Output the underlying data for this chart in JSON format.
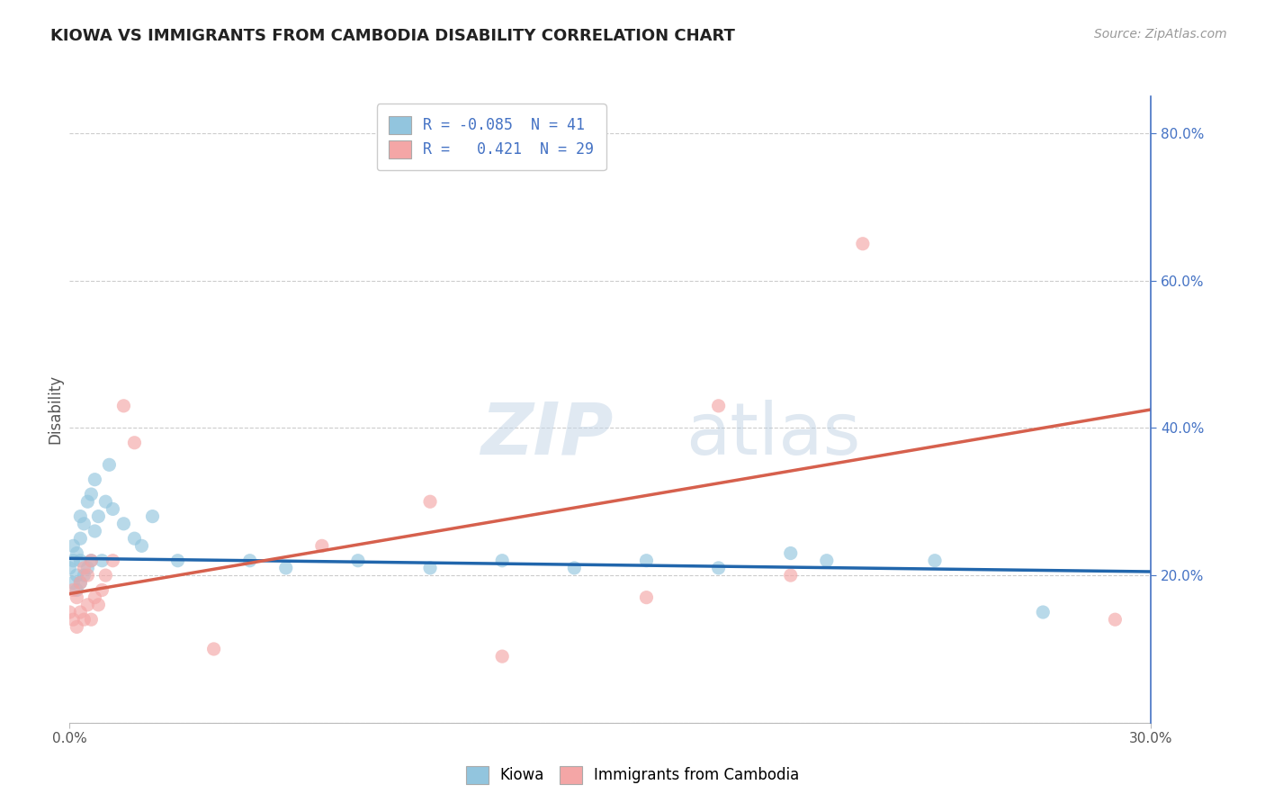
{
  "title": "KIOWA VS IMMIGRANTS FROM CAMBODIA DISABILITY CORRELATION CHART",
  "source": "Source: ZipAtlas.com",
  "ylabel": "Disability",
  "xlim": [
    0.0,
    0.3
  ],
  "ylim": [
    0.0,
    0.85
  ],
  "watermark": "ZIPatlas",
  "kiowa_R": -0.085,
  "kiowa_N": 41,
  "cambodia_R": 0.421,
  "cambodia_N": 29,
  "kiowa_color": "#92c5de",
  "cambodia_color": "#f4a6a6",
  "kiowa_line_color": "#2166ac",
  "cambodia_line_color": "#d6604d",
  "kiowa_x": [
    0.0,
    0.001,
    0.001,
    0.001,
    0.002,
    0.002,
    0.002,
    0.003,
    0.003,
    0.003,
    0.003,
    0.004,
    0.004,
    0.005,
    0.005,
    0.006,
    0.006,
    0.007,
    0.007,
    0.008,
    0.009,
    0.01,
    0.011,
    0.012,
    0.015,
    0.018,
    0.02,
    0.023,
    0.03,
    0.05,
    0.06,
    0.08,
    0.1,
    0.12,
    0.14,
    0.16,
    0.18,
    0.2,
    0.21,
    0.24,
    0.27
  ],
  "kiowa_y": [
    0.21,
    0.19,
    0.22,
    0.24,
    0.18,
    0.2,
    0.23,
    0.19,
    0.22,
    0.25,
    0.28,
    0.2,
    0.27,
    0.21,
    0.3,
    0.22,
    0.31,
    0.26,
    0.33,
    0.28,
    0.22,
    0.3,
    0.35,
    0.29,
    0.27,
    0.25,
    0.24,
    0.28,
    0.22,
    0.22,
    0.21,
    0.22,
    0.21,
    0.22,
    0.21,
    0.22,
    0.21,
    0.23,
    0.22,
    0.22,
    0.15
  ],
  "cambodia_x": [
    0.0,
    0.001,
    0.001,
    0.002,
    0.002,
    0.003,
    0.003,
    0.004,
    0.004,
    0.005,
    0.005,
    0.006,
    0.006,
    0.007,
    0.008,
    0.009,
    0.01,
    0.012,
    0.015,
    0.018,
    0.04,
    0.07,
    0.1,
    0.12,
    0.16,
    0.18,
    0.2,
    0.22,
    0.29
  ],
  "cambodia_y": [
    0.15,
    0.14,
    0.18,
    0.13,
    0.17,
    0.15,
    0.19,
    0.14,
    0.21,
    0.16,
    0.2,
    0.14,
    0.22,
    0.17,
    0.16,
    0.18,
    0.2,
    0.22,
    0.43,
    0.38,
    0.1,
    0.24,
    0.3,
    0.09,
    0.17,
    0.43,
    0.2,
    0.65,
    0.14
  ],
  "kiowa_line_x": [
    0.0,
    0.3
  ],
  "kiowa_line_y": [
    0.223,
    0.205
  ],
  "cambodia_line_x": [
    0.0,
    0.3
  ],
  "cambodia_line_y": [
    0.175,
    0.425
  ]
}
